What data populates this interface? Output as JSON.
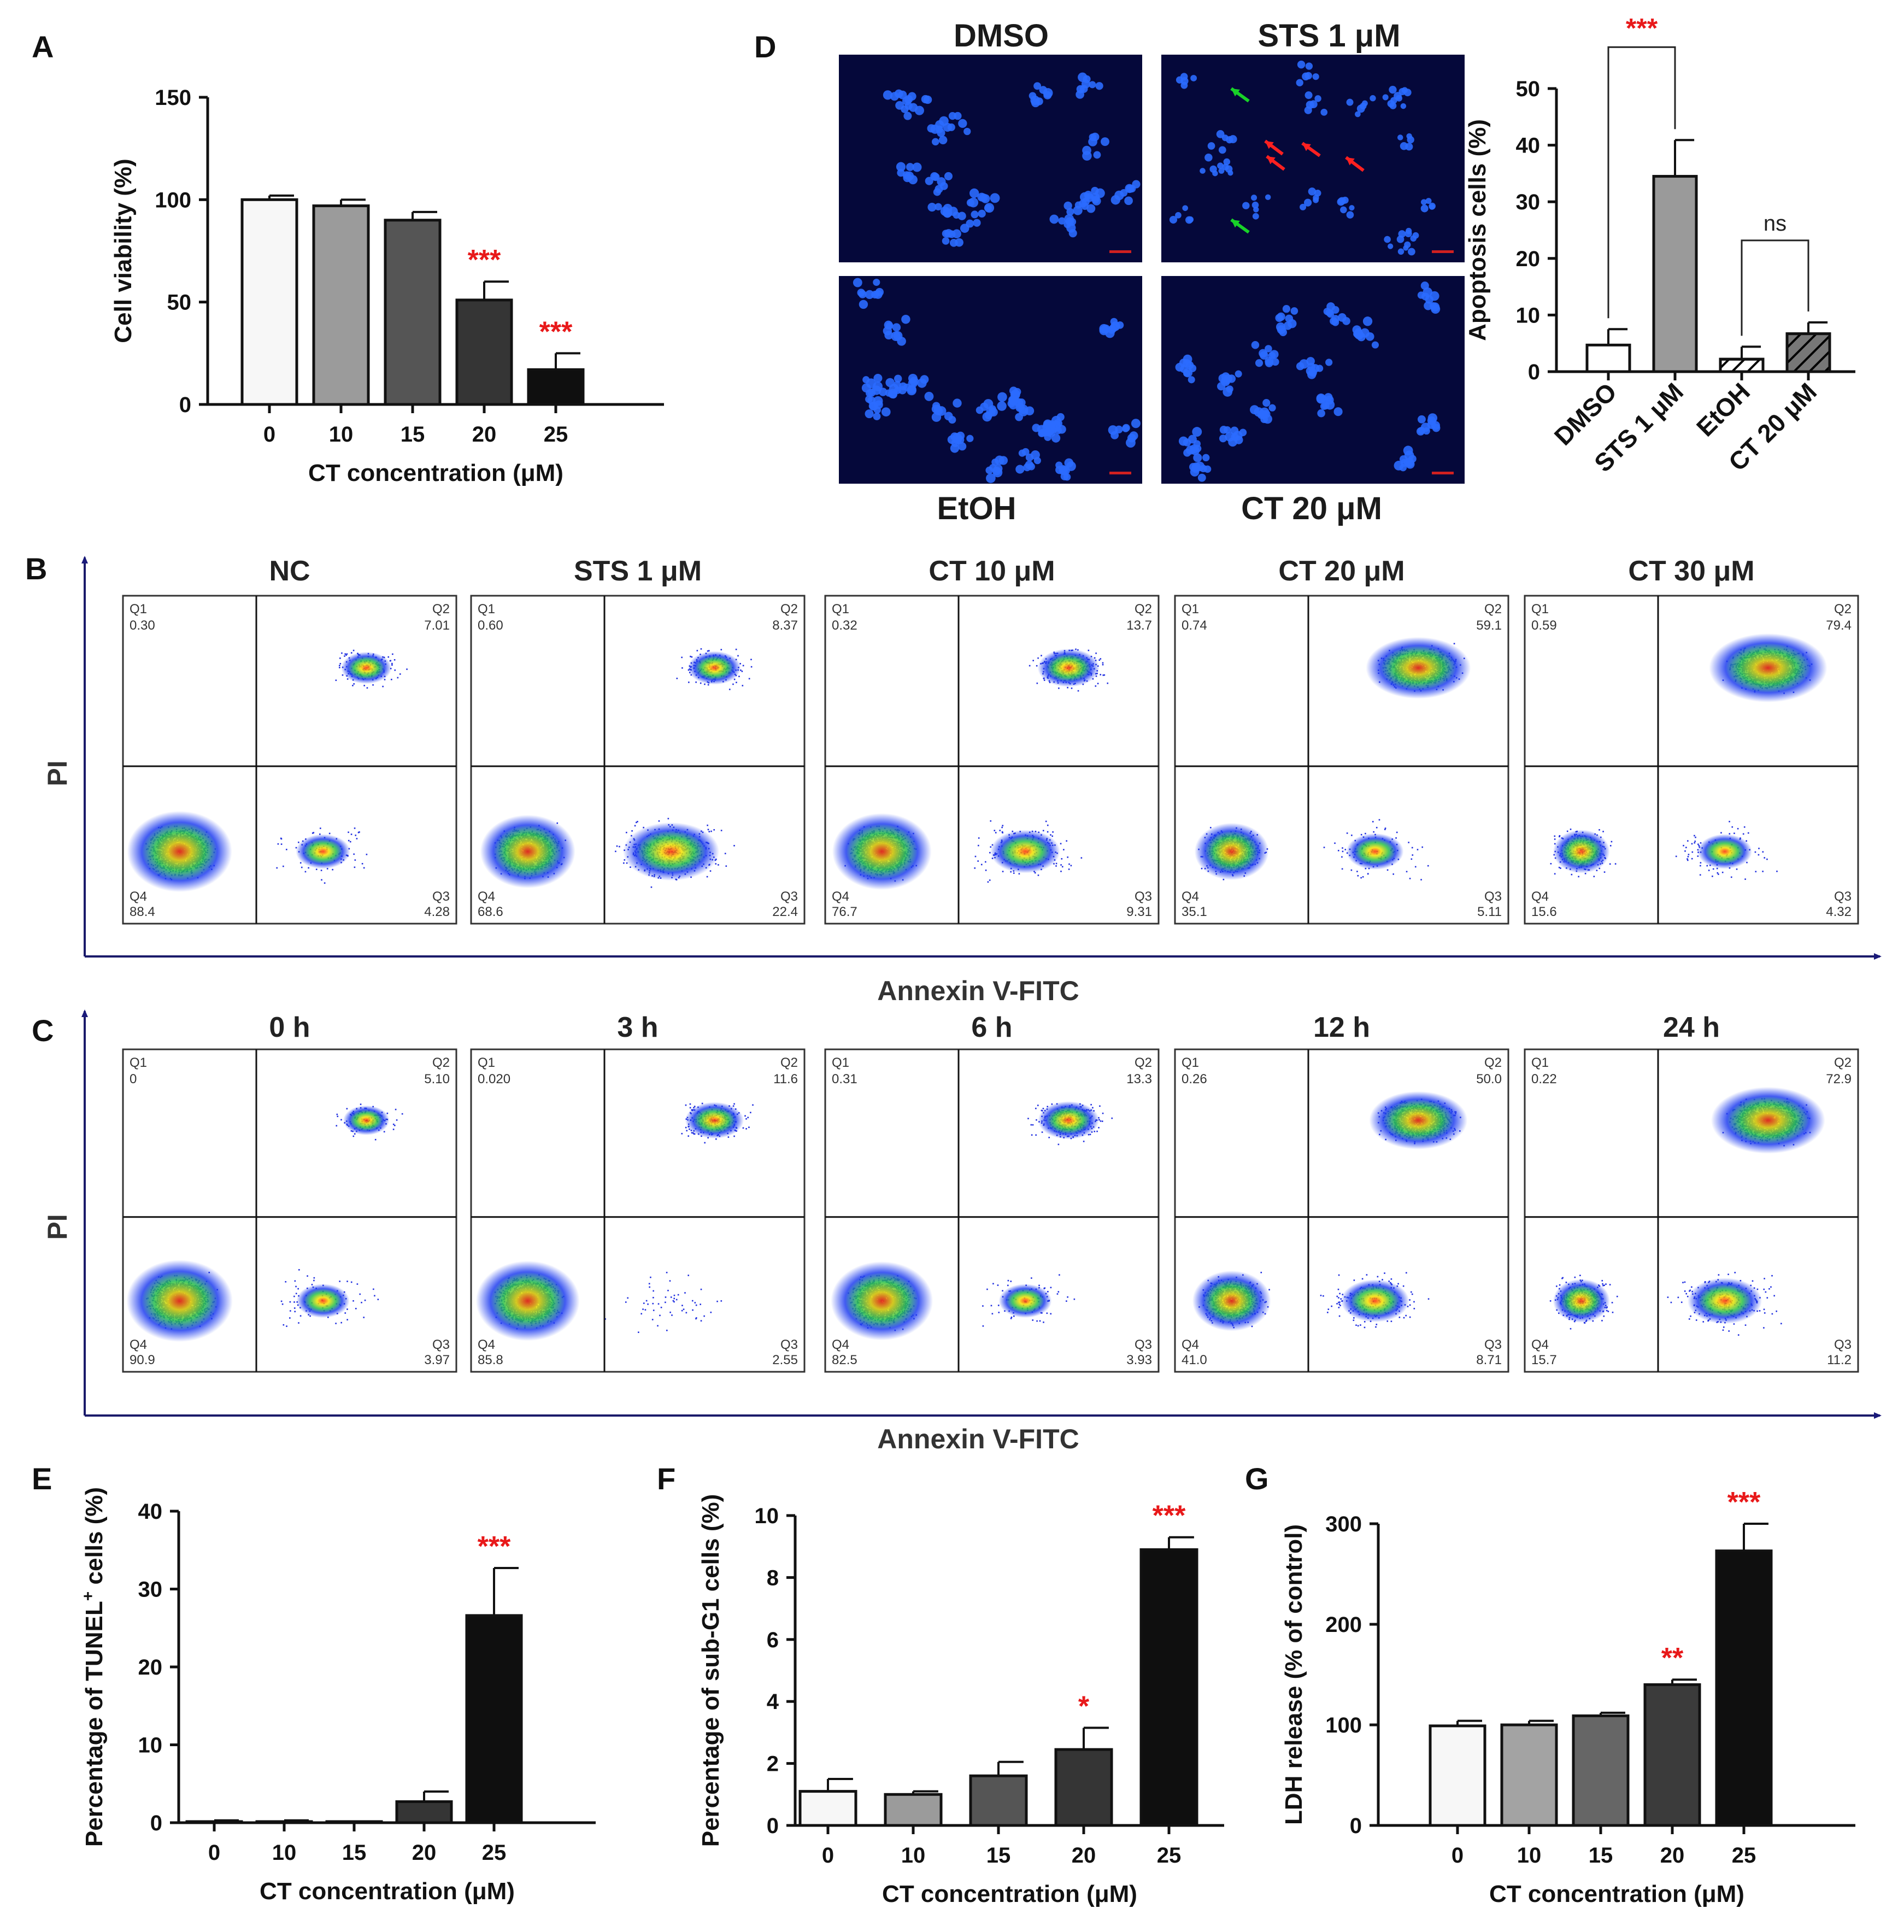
{
  "panel_letters": [
    "A",
    "B",
    "C",
    "D",
    "E",
    "F",
    "G"
  ],
  "colors": {
    "sig": "#e8191a",
    "micro_bg": "#05083a",
    "nucleus": "#2b6bff",
    "green_arrow": "#18d228",
    "red_arrow": "#ff2020"
  },
  "microscopy": {
    "labels": [
      "DMSO",
      "STS 1 μM",
      "EtOH",
      "CT 20 μM"
    ]
  },
  "flow": {
    "quadrant_names": [
      "Q1",
      "Q2",
      "Q3",
      "Q4"
    ],
    "y_axis_label": "PI",
    "x_axis_label": "Annexin V-FITC",
    "row_B": [
      {
        "title": "NC",
        "q1": "0.30",
        "q2": "7.01",
        "q3": "4.28",
        "q4": "88.4"
      },
      {
        "title": "STS 1 μM",
        "q1": "0.60",
        "q2": "8.37",
        "q3": "22.4",
        "q4": "68.6"
      },
      {
        "title": "CT 10 μM",
        "q1": "0.32",
        "q2": "13.7",
        "q3": "9.31",
        "q4": "76.7"
      },
      {
        "title": "CT 20 μM",
        "q1": "0.74",
        "q2": "59.1",
        "q3": "5.11",
        "q4": "35.1"
      },
      {
        "title": "CT 30 μM",
        "q1": "0.59",
        "q2": "79.4",
        "q3": "4.32",
        "q4": "15.6"
      }
    ],
    "row_C": [
      {
        "title": "0 h",
        "q1": "0",
        "q2": "5.10",
        "q3": "3.97",
        "q4": "90.9"
      },
      {
        "title": "3 h",
        "q1": "0.020",
        "q2": "11.6",
        "q3": "2.55",
        "q4": "85.8"
      },
      {
        "title": "6 h",
        "q1": "0.31",
        "q2": "13.3",
        "q3": "3.93",
        "q4": "82.5"
      },
      {
        "title": "12 h",
        "q1": "0.26",
        "q2": "50.0",
        "q3": "8.71",
        "q4": "41.0"
      },
      {
        "title": "24 h",
        "q1": "0.22",
        "q2": "72.9",
        "q3": "11.2",
        "q4": "15.7"
      }
    ]
  },
  "chart_data": [
    {
      "panel": "A",
      "type": "bar",
      "categories": [
        "0",
        "10",
        "15",
        "20",
        "25"
      ],
      "values": [
        100,
        97,
        90,
        51,
        17
      ],
      "errors": [
        2,
        3,
        4,
        9,
        8
      ],
      "significance": [
        "",
        "",
        "",
        "***",
        "***"
      ],
      "bar_colors": [
        "#f7f7f7",
        "#9b9b9b",
        "#555555",
        "#353535",
        "#0f0f0f"
      ],
      "ylim": [
        0,
        150
      ],
      "yticks": [
        0,
        50,
        100,
        150
      ],
      "xlabel": "CT concentration (μM)",
      "ylabel": "Cell viability  (%)"
    },
    {
      "panel": "D",
      "type": "bar",
      "categories": [
        "DMSO",
        "STS 1 μM",
        "EtOH",
        "CT 20 μM"
      ],
      "values": [
        4.7,
        34.5,
        2.2,
        6.7
      ],
      "errors": [
        2.8,
        6.4,
        2.2,
        2.0
      ],
      "bar_colors": [
        "#ffffff",
        "#9a9a9a",
        "#ffffff",
        "#777777"
      ],
      "hatched": [
        false,
        false,
        true,
        true
      ],
      "ylim": [
        0,
        50
      ],
      "yticks": [
        0,
        10,
        20,
        30,
        40,
        50
      ],
      "xlabel": "",
      "ylabel": "Apoptosis cells (%)",
      "comparisons": [
        {
          "from": "DMSO",
          "to": "STS 1 μM",
          "label": "***",
          "color": "#e8191a"
        },
        {
          "from": "EtOH",
          "to": "CT 20 μM",
          "label": "ns",
          "color": "#222222"
        }
      ]
    },
    {
      "panel": "E",
      "type": "bar",
      "categories": [
        "0",
        "10",
        "15",
        "20",
        "25"
      ],
      "values": [
        0.1,
        0.1,
        0,
        2.7,
        26.6
      ],
      "errors": [
        0.2,
        0.2,
        0,
        1.3,
        6.1
      ],
      "significance": [
        "",
        "",
        "",
        "",
        "***"
      ],
      "bar_colors": [
        "#f7f7f7",
        "#9b9b9b",
        "#555555",
        "#353535",
        "#0f0f0f"
      ],
      "ylim": [
        0,
        40
      ],
      "yticks": [
        0,
        10,
        20,
        30,
        40
      ],
      "xlabel": "CT concentration (μM)",
      "ylabel": "Percentage  of TUNEL",
      "ylabel_sup": "+",
      "ylabel_tail": " cells (%)"
    },
    {
      "panel": "F",
      "type": "bar",
      "categories": [
        "0",
        "10",
        "15",
        "20",
        "25"
      ],
      "values": [
        1.1,
        1.0,
        1.6,
        2.45,
        8.9
      ],
      "errors": [
        0.4,
        0.1,
        0.45,
        0.7,
        0.4
      ],
      "significance": [
        "",
        "",
        "",
        "*",
        "***"
      ],
      "bar_colors": [
        "#f7f7f7",
        "#9b9b9b",
        "#555555",
        "#353535",
        "#0f0f0f"
      ],
      "ylim": [
        0,
        10
      ],
      "yticks": [
        0,
        2,
        4,
        6,
        8,
        10
      ],
      "xlabel": "CT concentration (μM)",
      "ylabel": "Percentage of sub-G1 cells (%)"
    },
    {
      "panel": "G",
      "type": "bar",
      "categories": [
        "0",
        "10",
        "15",
        "20",
        "25"
      ],
      "values": [
        99,
        100,
        109,
        140,
        273
      ],
      "errors": [
        5,
        4,
        3,
        5,
        27
      ],
      "significance": [
        "",
        "",
        "",
        "**",
        "***"
      ],
      "bar_colors": [
        "#f7f7f7",
        "#a3a3a3",
        "#666666",
        "#3b3b3b",
        "#0f0f0f"
      ],
      "ylim": [
        0,
        300
      ],
      "yticks": [
        0,
        100,
        200,
        300
      ],
      "xlabel": "CT concentration (μM)",
      "ylabel": "LDH release (% of control)"
    }
  ]
}
